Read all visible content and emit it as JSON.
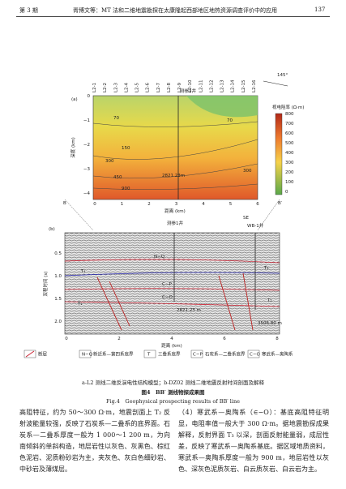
{
  "header": {
    "issue": "第 3 期",
    "running_title": "胥博文等：MT 法和二维地震勘探在太康隆起西部地区地热资源调查评价中的应用",
    "page": "137"
  },
  "figure": {
    "panel_a": {
      "label": "(a)",
      "azimuth": "145°",
      "well": "测参1井",
      "stations": [
        "L2-1",
        "L2-2",
        "L2-3",
        "L2-4",
        "L2-5",
        "L2-6",
        "L2-7",
        "L2-8",
        "L2-9",
        "L2-10",
        "L2-11",
        "L2-12",
        "L2-13",
        "L2-14",
        "L2-15",
        "L2-16"
      ],
      "y_label": "深度 (km)",
      "y_ticks": [
        "0",
        "−1",
        "−2",
        "−3",
        "−4"
      ],
      "x_label": "距离 (km)",
      "x_ticks": [
        "0",
        "1",
        "2",
        "3",
        "4",
        "5",
        "6"
      ],
      "contour_labels": [
        "70",
        "70",
        "150",
        "300",
        "450",
        "900",
        "300"
      ],
      "depth_note": "2821.23m",
      "colorbar_title": "视电阻率 (Ω·m)",
      "colorbar_ticks": [
        800,
        700,
        600,
        500,
        400,
        300,
        200,
        100,
        0
      ]
    },
    "panel_b": {
      "label": "(b)",
      "left_end": "B",
      "right_end": "B′",
      "well_1": "测参1井",
      "direction": "SE",
      "well_2": "WB-1井",
      "y_label": "双程时间 (s)",
      "y_ticks": [
        "0.5",
        "1.0",
        "1.5",
        "2.0"
      ],
      "x_label": "距离 (km)",
      "x_ticks": [
        "0",
        "2",
        "4",
        "6",
        "8"
      ],
      "units": [
        "N−Q",
        "T₁",
        "T₂",
        "C−P",
        "C−O",
        "T₁",
        "T₂"
      ],
      "depth_1": "2821.23 m",
      "depth_2": "3506.80 m"
    },
    "legend": [
      "断层",
      "N−Q",
      "新近系—第四系底界",
      "T",
      "三叠系底界",
      "C−P",
      "石炭系—二叠系底界",
      "C−O",
      "寒武系—奥陶系"
    ],
    "subcaption": "a-L2 测线二维反演电性结构模型；b-DZ02 测线二维地震反射时间剖面及解释",
    "caption_cn": "图4　BB′ 测线物探成果图",
    "caption_en": "Fig.4　Geophysical prospecting results of BB′ line"
  },
  "body": {
    "left": "高阻特征，约为 50～300 Ω·m，地震剖面上 T₂ 反射波能量较强，反映了石炭系—二叠系的底界面。石炭系—二叠系厚度一般为 1 000～1 200 m，为向南倾斜的单斜构造，地层岩性以灰色、灰黑色、棕红色泥岩、泥质粉砂岩为主，夹灰色、灰白色细砂岩、中砂岩及薄煤层。",
    "right": "（4）寒武系—奥陶系（∈−O）：基底高阻特征明显，电阻率值一般大于 300 Ω·m。据地震勘探成果解释，反射界面 T₃ 以深，剖面反射能量弱，成层性差，反映了寒武系—奥陶系基底。据区域地质资料，寒武系—奥陶系厚度一般为 900 m，地层岩性以灰色、深灰色泥质灰岩、白云质灰岩、白云岩为主。"
  }
}
